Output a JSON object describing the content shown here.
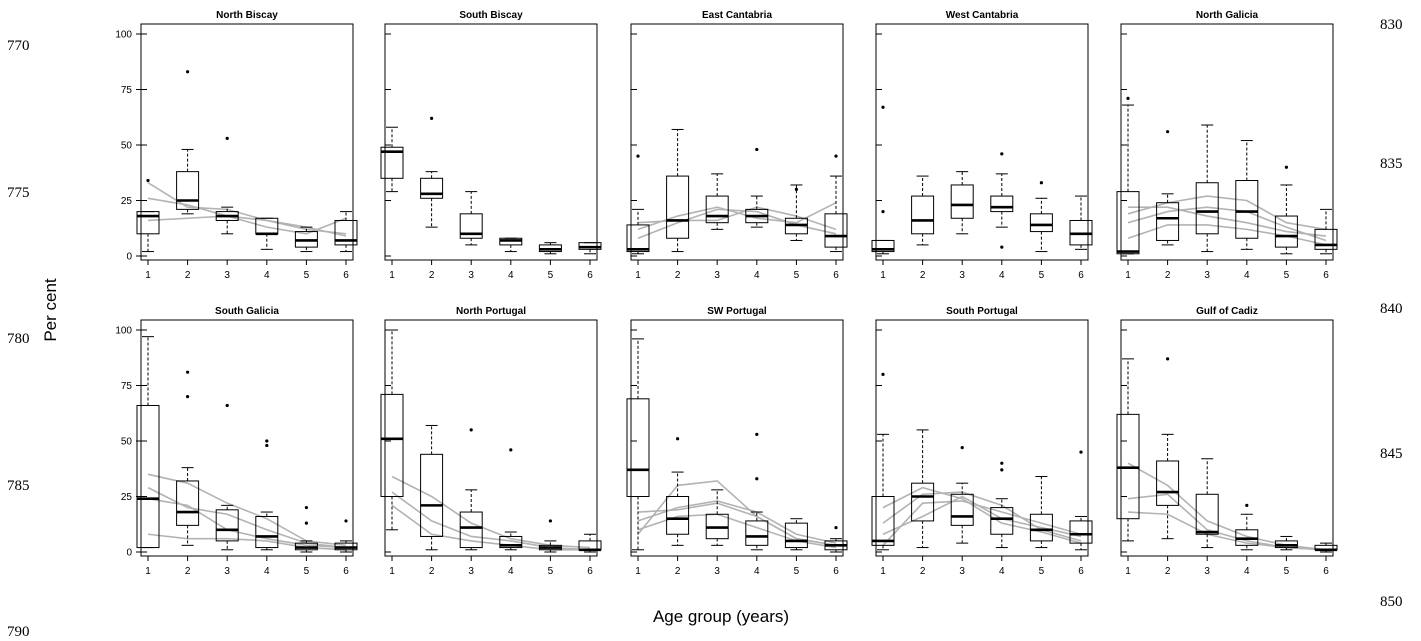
{
  "figure": {
    "ylabel": "Per cent",
    "xlabel": "Age group (years)",
    "line_numbers_left": [
      "770",
      "775",
      "780",
      "785",
      "790"
    ],
    "line_numbers_right": [
      "830",
      "835",
      "840",
      "845",
      "850"
    ]
  },
  "chart_data": [
    {
      "type": "box",
      "title": "North Biscay",
      "categories": [
        "1",
        "2",
        "3",
        "4",
        "5",
        "6"
      ],
      "ylim": [
        0,
        100
      ],
      "yticks": [
        "0",
        "25",
        "50",
        "75",
        "100"
      ],
      "boxes": [
        {
          "whisker_low": 2,
          "q1": 10,
          "median": 18,
          "q3": 20,
          "whisker_high": 20,
          "outliers": [
            34
          ]
        },
        {
          "whisker_low": 19,
          "q1": 21,
          "median": 25,
          "q3": 38,
          "whisker_high": 48,
          "outliers": [
            83
          ]
        },
        {
          "whisker_low": 10,
          "q1": 16,
          "median": 18,
          "q3": 20,
          "whisker_high": 22,
          "outliers": [
            53
          ]
        },
        {
          "whisker_low": 3,
          "q1": 10,
          "median": 10,
          "q3": 17,
          "whisker_high": 17,
          "outliers": []
        },
        {
          "whisker_low": 2,
          "q1": 4,
          "median": 7,
          "q3": 11,
          "whisker_high": 13,
          "outliers": []
        },
        {
          "whisker_low": 2,
          "q1": 5,
          "median": 7,
          "q3": 16,
          "whisker_high": 20,
          "outliers": []
        }
      ],
      "lines": [
        [
          33,
          22,
          21,
          16,
          12,
          10
        ],
        [
          26,
          23,
          18,
          16,
          13,
          9
        ],
        [
          16,
          17,
          18,
          13,
          10,
          17
        ]
      ]
    },
    {
      "type": "box",
      "title": "South Biscay",
      "categories": [
        "1",
        "2",
        "3",
        "4",
        "5",
        "6"
      ],
      "ylim": [
        0,
        100
      ],
      "yticks": [
        "0",
        "25",
        "50",
        "75",
        "100"
      ],
      "boxes": [
        {
          "whisker_low": 29,
          "q1": 35,
          "median": 47,
          "q3": 49,
          "whisker_high": 58,
          "outliers": []
        },
        {
          "whisker_low": 13,
          "q1": 26,
          "median": 28,
          "q3": 35,
          "whisker_high": 38,
          "outliers": [
            62
          ]
        },
        {
          "whisker_low": 5,
          "q1": 8,
          "median": 10,
          "q3": 19,
          "whisker_high": 29,
          "outliers": []
        },
        {
          "whisker_low": 2,
          "q1": 5,
          "median": 7,
          "q3": 8,
          "whisker_high": 8,
          "outliers": []
        },
        {
          "whisker_low": 1,
          "q1": 2,
          "median": 3,
          "q3": 5,
          "whisker_high": 6,
          "outliers": []
        },
        {
          "whisker_low": 1,
          "q1": 3,
          "median": 4,
          "q3": 6,
          "whisker_high": 6,
          "outliers": []
        }
      ],
      "lines": []
    },
    {
      "type": "box",
      "title": "East Cantabria",
      "categories": [
        "1",
        "2",
        "3",
        "4",
        "5",
        "6"
      ],
      "ylim": [
        0,
        100
      ],
      "yticks": [
        "0",
        "25",
        "50",
        "75",
        "100"
      ],
      "boxes": [
        {
          "whisker_low": 1,
          "q1": 2,
          "median": 3,
          "q3": 14,
          "whisker_high": 21,
          "outliers": [
            45
          ]
        },
        {
          "whisker_low": 2,
          "q1": 8,
          "median": 16,
          "q3": 36,
          "whisker_high": 57,
          "outliers": []
        },
        {
          "whisker_low": 12,
          "q1": 15,
          "median": 18,
          "q3": 27,
          "whisker_high": 37,
          "outliers": []
        },
        {
          "whisker_low": 13,
          "q1": 15,
          "median": 18,
          "q3": 21,
          "whisker_high": 27,
          "outliers": [
            48
          ]
        },
        {
          "whisker_low": 7,
          "q1": 10,
          "median": 14,
          "q3": 17,
          "whisker_high": 32,
          "outliers": [
            30
          ]
        },
        {
          "whisker_low": 2,
          "q1": 4,
          "median": 9,
          "q3": 19,
          "whisker_high": 36,
          "outliers": [
            45
          ]
        }
      ],
      "lines": [
        [
          8,
          15,
          21,
          20,
          14,
          10
        ],
        [
          12,
          18,
          22,
          17,
          15,
          24
        ],
        [
          15,
          16,
          16,
          22,
          18,
          12
        ]
      ]
    },
    {
      "type": "box",
      "title": "West Cantabria",
      "categories": [
        "1",
        "2",
        "3",
        "4",
        "5",
        "6"
      ],
      "ylim": [
        0,
        100
      ],
      "yticks": [
        "0",
        "25",
        "50",
        "75",
        "100"
      ],
      "boxes": [
        {
          "whisker_low": 1,
          "q1": 2,
          "median": 3,
          "q3": 7,
          "whisker_high": 7,
          "outliers": [
            20,
            67
          ]
        },
        {
          "whisker_low": 5,
          "q1": 10,
          "median": 16,
          "q3": 27,
          "whisker_high": 36,
          "outliers": []
        },
        {
          "whisker_low": 10,
          "q1": 17,
          "median": 23,
          "q3": 32,
          "whisker_high": 38,
          "outliers": []
        },
        {
          "whisker_low": 13,
          "q1": 20,
          "median": 22,
          "q3": 27,
          "whisker_high": 37,
          "outliers": [
            46,
            4
          ]
        },
        {
          "whisker_low": 2,
          "q1": 11,
          "median": 14,
          "q3": 19,
          "whisker_high": 26,
          "outliers": [
            33
          ]
        },
        {
          "whisker_low": 3,
          "q1": 5,
          "median": 10,
          "q3": 16,
          "whisker_high": 27,
          "outliers": []
        }
      ],
      "lines": []
    },
    {
      "type": "box",
      "title": "North Galicia",
      "categories": [
        "1",
        "2",
        "3",
        "4",
        "5",
        "6"
      ],
      "ylim": [
        0,
        100
      ],
      "yticks": [
        "0",
        "25",
        "50",
        "75",
        "100"
      ],
      "boxes": [
        {
          "whisker_low": 1,
          "q1": 1,
          "median": 2,
          "q3": 29,
          "whisker_high": 68,
          "outliers": [
            71
          ]
        },
        {
          "whisker_low": 5,
          "q1": 7,
          "median": 17,
          "q3": 24,
          "whisker_high": 28,
          "outliers": [
            56
          ]
        },
        {
          "whisker_low": 2,
          "q1": 10,
          "median": 20,
          "q3": 33,
          "whisker_high": 59,
          "outliers": []
        },
        {
          "whisker_low": 3,
          "q1": 8,
          "median": 20,
          "q3": 34,
          "whisker_high": 52,
          "outliers": []
        },
        {
          "whisker_low": 1,
          "q1": 4,
          "median": 9,
          "q3": 18,
          "whisker_high": 32,
          "outliers": [
            40
          ]
        },
        {
          "whisker_low": 1,
          "q1": 3,
          "median": 5,
          "q3": 12,
          "whisker_high": 21,
          "outliers": []
        }
      ],
      "lines": [
        [
          22,
          22,
          18,
          15,
          11,
          9
        ],
        [
          15,
          20,
          22,
          20,
          13,
          7
        ],
        [
          8,
          14,
          14,
          12,
          9,
          5
        ],
        [
          19,
          24,
          27,
          25,
          15,
          12
        ]
      ]
    },
    {
      "type": "box",
      "title": "South Galicia",
      "categories": [
        "1",
        "2",
        "3",
        "4",
        "5",
        "6"
      ],
      "ylim": [
        0,
        100
      ],
      "yticks": [
        "0",
        "25",
        "50",
        "75",
        "100"
      ],
      "boxes": [
        {
          "whisker_low": 2,
          "q1": 2,
          "median": 24,
          "q3": 66,
          "whisker_high": 97,
          "outliers": []
        },
        {
          "whisker_low": 3,
          "q1": 12,
          "median": 18,
          "q3": 32,
          "whisker_high": 38,
          "outliers": [
            81,
            70
          ]
        },
        {
          "whisker_low": 1,
          "q1": 5,
          "median": 10,
          "q3": 19,
          "whisker_high": 21,
          "outliers": [
            66
          ]
        },
        {
          "whisker_low": 1,
          "q1": 2,
          "median": 7,
          "q3": 16,
          "whisker_high": 18,
          "outliers": [
            50,
            48
          ]
        },
        {
          "whisker_low": 0,
          "q1": 1,
          "median": 2,
          "q3": 4,
          "whisker_high": 5,
          "outliers": [
            20,
            13
          ]
        },
        {
          "whisker_low": 0,
          "q1": 1,
          "median": 2,
          "q3": 4,
          "whisker_high": 5,
          "outliers": [
            14
          ]
        }
      ],
      "lines": [
        [
          35,
          31,
          22,
          15,
          5,
          3
        ],
        [
          29,
          20,
          17,
          10,
          4,
          2
        ],
        [
          24,
          21,
          10,
          6,
          3,
          2
        ],
        [
          8,
          6,
          6,
          5,
          2,
          1
        ]
      ]
    },
    {
      "type": "box",
      "title": "North Portugal",
      "categories": [
        "1",
        "2",
        "3",
        "4",
        "5",
        "6"
      ],
      "ylim": [
        0,
        100
      ],
      "yticks": [
        "0",
        "25",
        "50",
        "75",
        "100"
      ],
      "boxes": [
        {
          "whisker_low": 10,
          "q1": 25,
          "median": 51,
          "q3": 71,
          "whisker_high": 100,
          "outliers": []
        },
        {
          "whisker_low": 1,
          "q1": 7,
          "median": 21,
          "q3": 44,
          "whisker_high": 57,
          "outliers": []
        },
        {
          "whisker_low": 1,
          "q1": 2,
          "median": 11,
          "q3": 18,
          "whisker_high": 28,
          "outliers": [
            55
          ]
        },
        {
          "whisker_low": 1,
          "q1": 2,
          "median": 3,
          "q3": 7,
          "whisker_high": 9,
          "outliers": [
            46
          ]
        },
        {
          "whisker_low": 0,
          "q1": 1,
          "median": 2,
          "q3": 3,
          "whisker_high": 5,
          "outliers": [
            14
          ]
        },
        {
          "whisker_low": 0,
          "q1": 1,
          "median": 1,
          "q3": 5,
          "whisker_high": 8,
          "outliers": []
        }
      ],
      "lines": [
        [
          34,
          25,
          13,
          6,
          3,
          2
        ],
        [
          27,
          14,
          7,
          5,
          2,
          1
        ],
        [
          21,
          8,
          5,
          3,
          1,
          1
        ]
      ]
    },
    {
      "type": "box",
      "title": "SW Portugal",
      "categories": [
        "1",
        "2",
        "3",
        "4",
        "5",
        "6"
      ],
      "ylim": [
        0,
        100
      ],
      "yticks": [
        "0",
        "25",
        "50",
        "75",
        "100"
      ],
      "boxes": [
        {
          "whisker_low": 1,
          "q1": 25,
          "median": 37,
          "q3": 69,
          "whisker_high": 96,
          "outliers": []
        },
        {
          "whisker_low": 3,
          "q1": 8,
          "median": 15,
          "q3": 25,
          "whisker_high": 36,
          "outliers": [
            51
          ]
        },
        {
          "whisker_low": 3,
          "q1": 6,
          "median": 11,
          "q3": 17,
          "whisker_high": 28,
          "outliers": []
        },
        {
          "whisker_low": 1,
          "q1": 3,
          "median": 7,
          "q3": 14,
          "whisker_high": 18,
          "outliers": [
            53,
            33
          ]
        },
        {
          "whisker_low": 1,
          "q1": 2,
          "median": 5,
          "q3": 13,
          "whisker_high": 15,
          "outliers": []
        },
        {
          "whisker_low": 0,
          "q1": 1,
          "median": 3,
          "q3": 5,
          "whisker_high": 6,
          "outliers": [
            11
          ]
        }
      ],
      "lines": [
        [
          8,
          30,
          32,
          16,
          6,
          3
        ],
        [
          14,
          20,
          23,
          18,
          8,
          4
        ],
        [
          18,
          19,
          22,
          16,
          6,
          3
        ],
        [
          10,
          16,
          17,
          11,
          5,
          2
        ]
      ]
    },
    {
      "type": "box",
      "title": "South Portugal",
      "categories": [
        "1",
        "2",
        "3",
        "4",
        "5",
        "6"
      ],
      "ylim": [
        0,
        100
      ],
      "yticks": [
        "0",
        "25",
        "50",
        "75",
        "100"
      ],
      "boxes": [
        {
          "whisker_low": 1,
          "q1": 3,
          "median": 5,
          "q3": 25,
          "whisker_high": 53,
          "outliers": [
            80
          ]
        },
        {
          "whisker_low": 2,
          "q1": 14,
          "median": 25,
          "q3": 31,
          "whisker_high": 55,
          "outliers": []
        },
        {
          "whisker_low": 4,
          "q1": 12,
          "median": 16,
          "q3": 26,
          "whisker_high": 31,
          "outliers": [
            47
          ]
        },
        {
          "whisker_low": 2,
          "q1": 8,
          "median": 15,
          "q3": 20,
          "whisker_high": 24,
          "outliers": [
            40,
            37
          ]
        },
        {
          "whisker_low": 2,
          "q1": 5,
          "median": 10,
          "q3": 17,
          "whisker_high": 34,
          "outliers": []
        },
        {
          "whisker_low": 1,
          "q1": 4,
          "median": 8,
          "q3": 14,
          "whisker_high": 16,
          "outliers": [
            45
          ]
        }
      ],
      "lines": [
        [
          13,
          26,
          27,
          21,
          10,
          5
        ],
        [
          3,
          22,
          23,
          18,
          13,
          8
        ],
        [
          20,
          29,
          24,
          13,
          9,
          4
        ],
        [
          8,
          16,
          25,
          15,
          11,
          7
        ]
      ]
    },
    {
      "type": "box",
      "title": "Gulf of Cadiz",
      "categories": [
        "1",
        "2",
        "3",
        "4",
        "5",
        "6"
      ],
      "ylim": [
        0,
        100
      ],
      "yticks": [
        "0",
        "25",
        "50",
        "75",
        "100"
      ],
      "boxes": [
        {
          "whisker_low": 5,
          "q1": 15,
          "median": 38,
          "q3": 62,
          "whisker_high": 87,
          "outliers": []
        },
        {
          "whisker_low": 6,
          "q1": 21,
          "median": 27,
          "q3": 41,
          "whisker_high": 53,
          "outliers": [
            87
          ]
        },
        {
          "whisker_low": 2,
          "q1": 8,
          "median": 9,
          "q3": 26,
          "whisker_high": 42,
          "outliers": []
        },
        {
          "whisker_low": 1,
          "q1": 3,
          "median": 6,
          "q3": 10,
          "whisker_high": 17,
          "outliers": [
            21
          ]
        },
        {
          "whisker_low": 1,
          "q1": 2,
          "median": 3,
          "q3": 5,
          "whisker_high": 7,
          "outliers": []
        },
        {
          "whisker_low": 0,
          "q1": 1,
          "median": 1,
          "q3": 3,
          "whisker_high": 4,
          "outliers": []
        }
      ],
      "lines": [
        [
          40,
          30,
          14,
          7,
          3,
          1
        ],
        [
          24,
          26,
          10,
          5,
          2,
          1
        ],
        [
          18,
          17,
          8,
          4,
          2,
          1
        ]
      ]
    }
  ]
}
